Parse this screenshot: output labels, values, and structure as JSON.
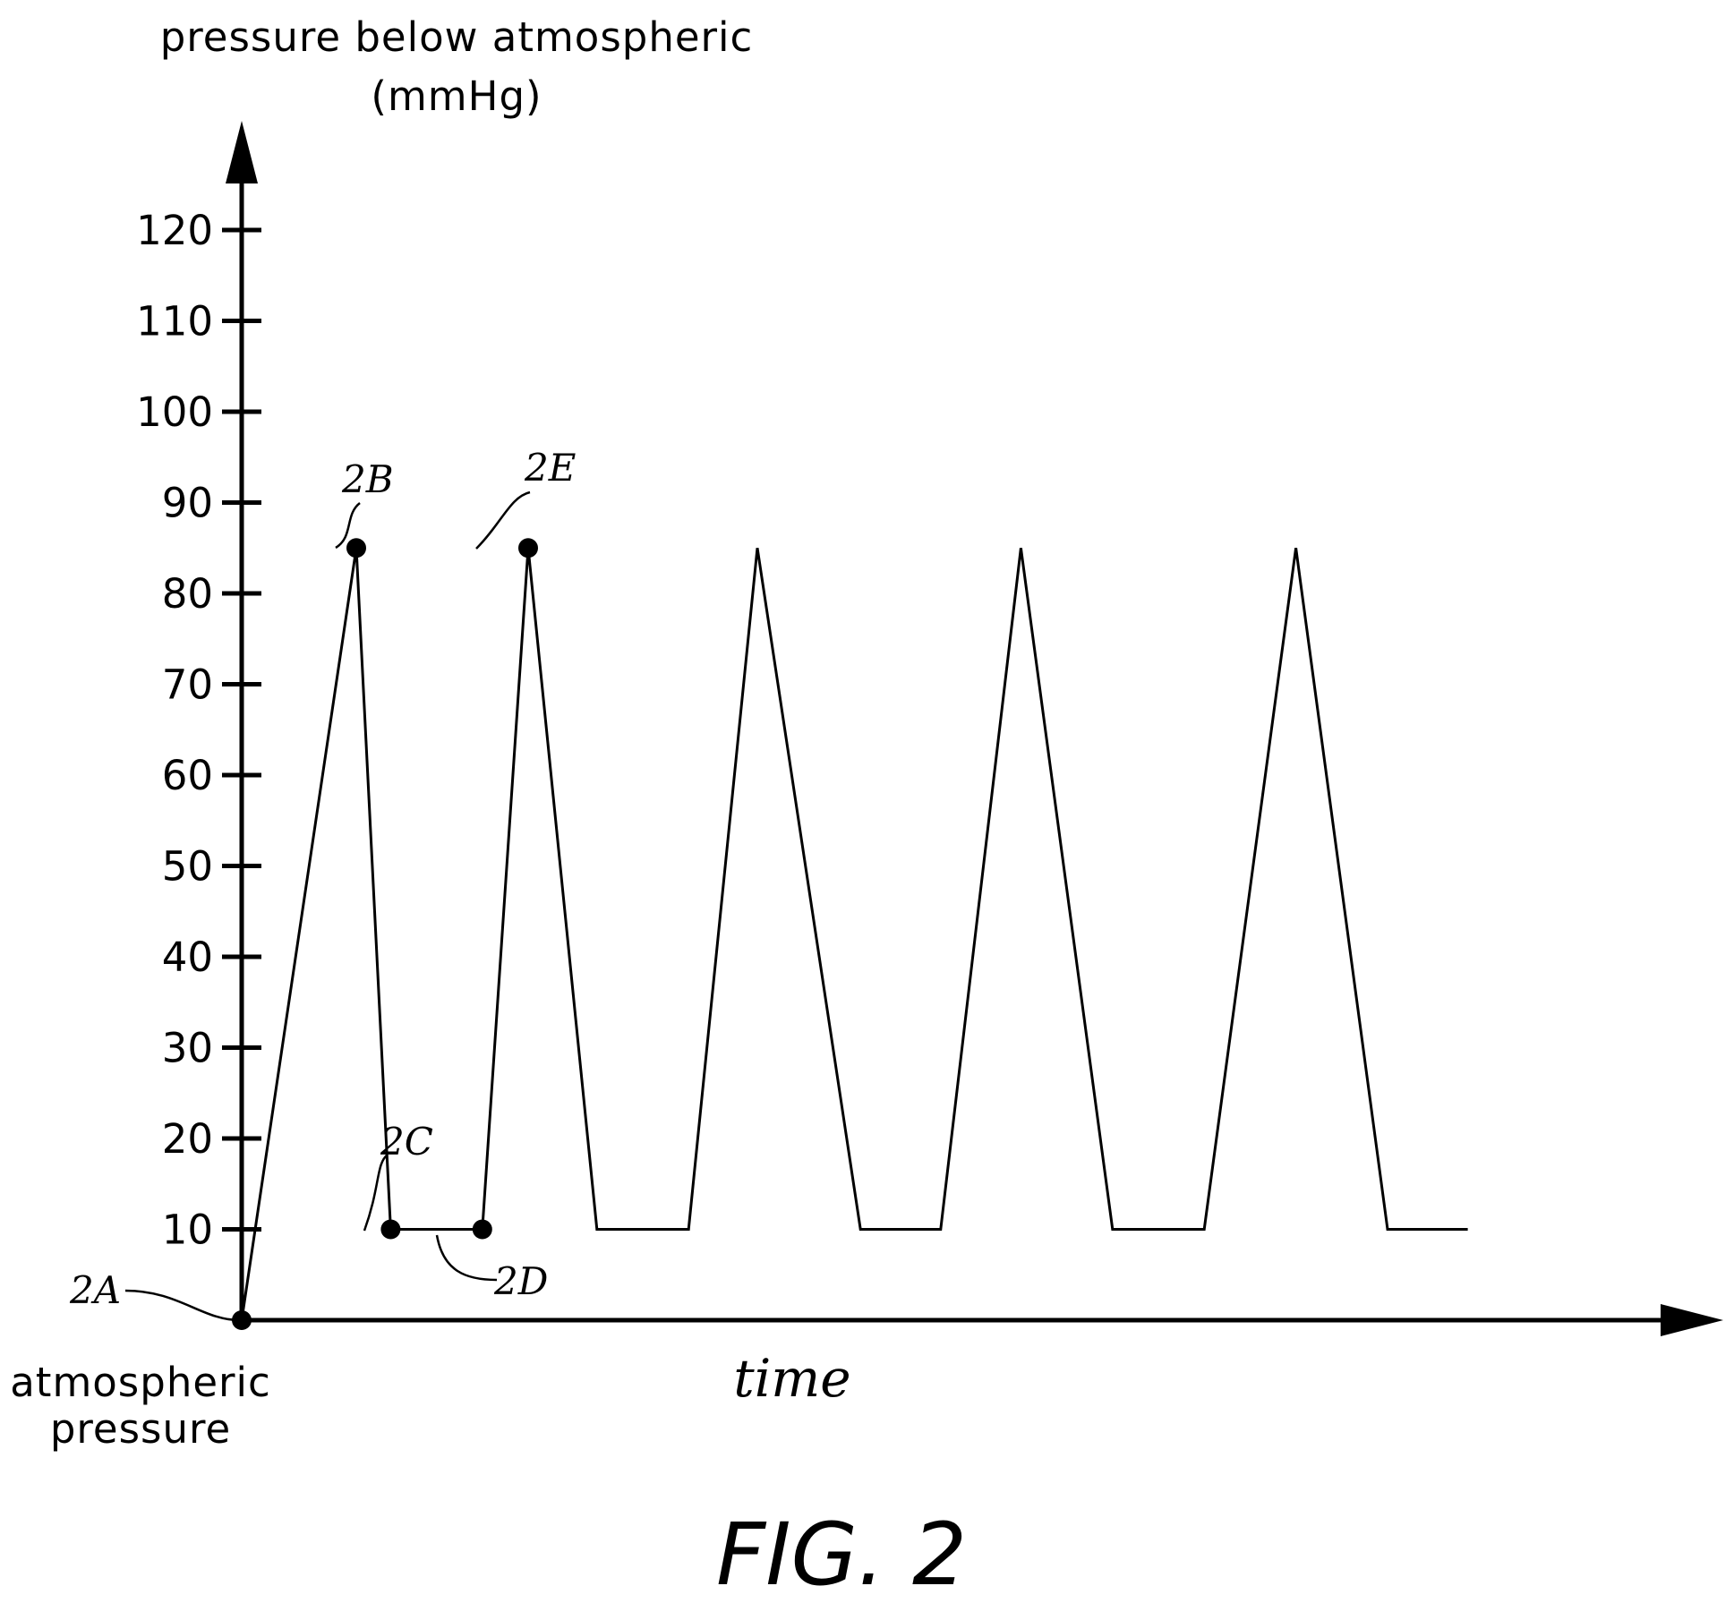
{
  "chart_data": {
    "type": "line",
    "ylabel_line1": "pressure below atmospheric",
    "ylabel_line2": "(mmHg)",
    "xlabel": "time",
    "origin_label_line1": "atmospheric",
    "origin_label_line2": "pressure",
    "figure_label": "FIG. 2",
    "ylim": [
      0,
      120
    ],
    "y_ticks": [
      {
        "value": 10,
        "label": "10"
      },
      {
        "value": 20,
        "label": "20"
      },
      {
        "value": 30,
        "label": "30"
      },
      {
        "value": 40,
        "label": "40"
      },
      {
        "value": 50,
        "label": "50"
      },
      {
        "value": 60,
        "label": "60"
      },
      {
        "value": 70,
        "label": "70"
      },
      {
        "value": 80,
        "label": "80"
      },
      {
        "value": 90,
        "label": "90"
      },
      {
        "value": 100,
        "label": "100"
      },
      {
        "value": 110,
        "label": "110"
      },
      {
        "value": 120,
        "label": "120"
      }
    ],
    "series": [
      {
        "x": [
          0,
          1.0,
          1.3,
          2.1,
          2.5,
          3.1,
          3.9,
          4.5,
          5.4,
          6.1,
          6.8,
          7.6,
          8.4,
          9.2,
          10.0,
          10.5,
          10.7
        ],
        "y": [
          0,
          85,
          10,
          10,
          85,
          10,
          10,
          85,
          10,
          10,
          85,
          10,
          10,
          85,
          10,
          10,
          10
        ]
      }
    ],
    "points": [
      {
        "label": "2A",
        "x": 0,
        "y": 0
      },
      {
        "label": "2B",
        "x": 1.0,
        "y": 85
      },
      {
        "label": "2C",
        "x": 1.3,
        "y": 10
      },
      {
        "label": "2D",
        "x": 2.1,
        "y": 10
      },
      {
        "label": "2E",
        "x": 2.5,
        "y": 85
      }
    ]
  }
}
